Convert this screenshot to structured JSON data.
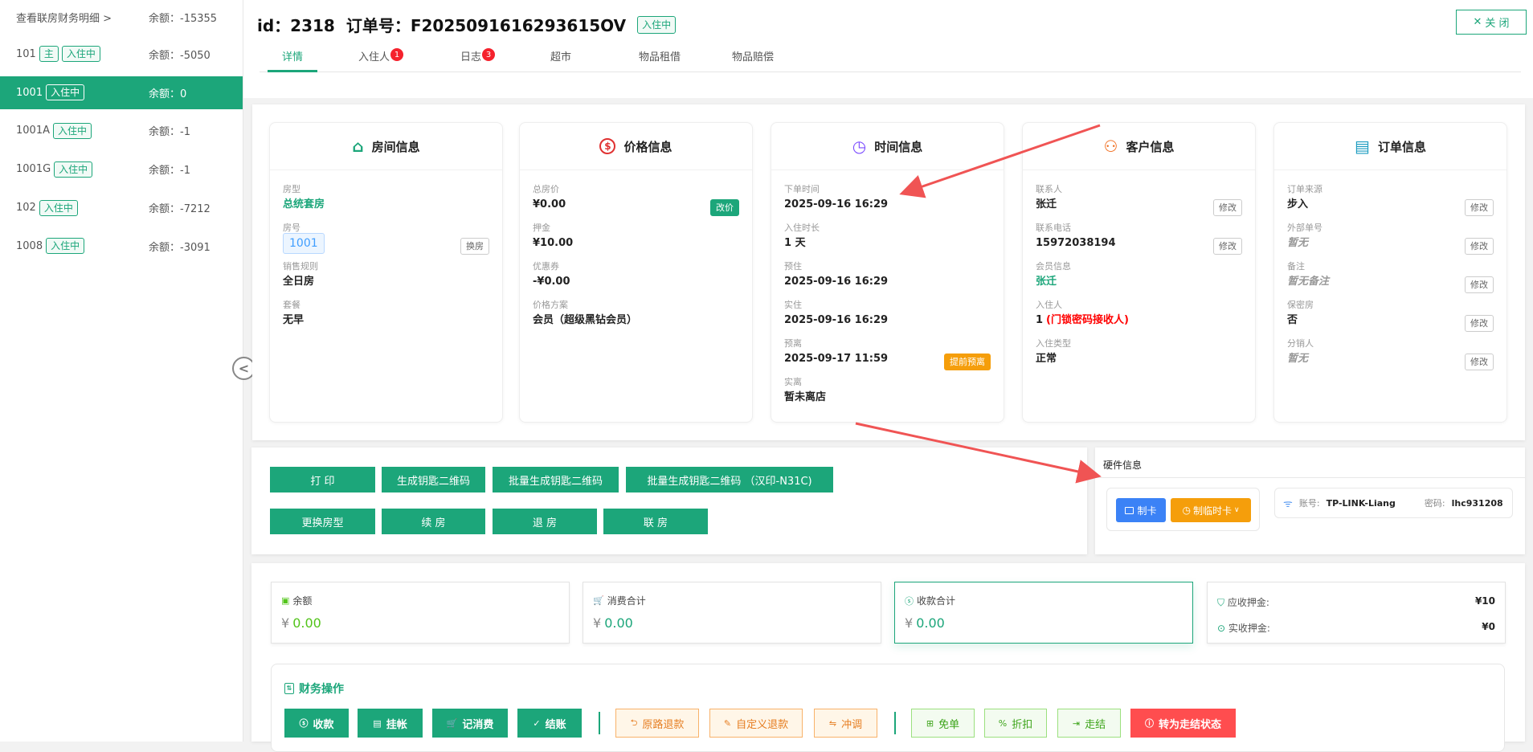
{
  "sidebar": {
    "rows": [
      {
        "name": "查看联房财务明细 >",
        "tags": [],
        "balance": "余额：-15355",
        "selected": false
      },
      {
        "name": "101",
        "tags": [
          "主",
          "入住中"
        ],
        "balance": "余额：-5050",
        "selected": false
      },
      {
        "name": "1001",
        "tags": [
          "入住中"
        ],
        "balance": "余额：0",
        "selected": true
      },
      {
        "name": "1001A",
        "tags": [
          "入住中"
        ],
        "balance": "余额：-1",
        "selected": false
      },
      {
        "name": "1001G",
        "tags": [
          "入住中"
        ],
        "balance": "余额：-1",
        "selected": false
      },
      {
        "name": "102",
        "tags": [
          "入住中"
        ],
        "balance": "余额：-7212",
        "selected": false
      },
      {
        "name": "1008",
        "tags": [
          "入住中"
        ],
        "balance": "余额：-3091",
        "selected": false
      }
    ],
    "collapse_icon": "chevron-left-circle"
  },
  "header": {
    "id_text": "id：2318",
    "order_text": "订单号：F2025091616293615OV",
    "status": "入住中",
    "close_label": "关 闭",
    "tabs": [
      {
        "label": "详情",
        "active": true
      },
      {
        "label": "入住人",
        "badge": "1"
      },
      {
        "label": "日志",
        "badge": "3"
      },
      {
        "label": "超市"
      },
      {
        "label": "物品租借"
      },
      {
        "label": "物品赔偿"
      }
    ]
  },
  "cards": [
    {
      "title": "房间信息",
      "icon": "house",
      "color": "#1ca67a",
      "fields": [
        {
          "label": "房型",
          "value": "总统套房",
          "style": "green"
        },
        {
          "label": "房号",
          "value": "1001",
          "style": "room",
          "button": "换房"
        },
        {
          "label": "销售规则",
          "value": "全日房"
        },
        {
          "label": "套餐",
          "value": "无早"
        }
      ]
    },
    {
      "title": "价格信息",
      "icon": "dollar-circle",
      "color": "#e03131",
      "fields": [
        {
          "label": "总房价",
          "value": "¥0.00",
          "button": "改价",
          "button_style": "fill"
        },
        {
          "label": "押金",
          "value": "¥10.00"
        },
        {
          "label": "优惠券",
          "value": "-¥0.00"
        },
        {
          "label": "价格方案",
          "value": "会员（超级黑钻会员）"
        }
      ]
    },
    {
      "title": "时间信息",
      "icon": "clock",
      "color": "#7c4dff",
      "fields": [
        {
          "label": "下单时间",
          "value": "2025-09-16 16:29"
        },
        {
          "label": "入住时长",
          "value": "1 天"
        },
        {
          "label": "预住",
          "value": "2025-09-16 16:29"
        },
        {
          "label": "实住",
          "value": "2025-09-16 16:29"
        },
        {
          "label": "预离",
          "value": "2025-09-17 11:59",
          "button": "提前预离",
          "button_style": "orange"
        },
        {
          "label": "实离",
          "value": "暂未离店"
        }
      ]
    },
    {
      "title": "客户信息",
      "icon": "user",
      "color": "#f06a1a",
      "fields": [
        {
          "label": "联系人",
          "value": "张迁",
          "button": "修改"
        },
        {
          "label": "联系电话",
          "value": "15972038194",
          "button": "修改"
        },
        {
          "label": "会员信息",
          "value": "张迁",
          "style": "green"
        },
        {
          "label": "入住人",
          "value": "1",
          "suffix": "(门锁密码接收人)"
        },
        {
          "label": "入住类型",
          "value": "正常"
        }
      ]
    },
    {
      "title": "订单信息",
      "icon": "document",
      "color": "#1a9bc0",
      "fields": [
        {
          "label": "订单来源",
          "value": "步入",
          "button": "修改"
        },
        {
          "label": "外部单号",
          "value": "暂无",
          "style": "muted",
          "button": "修改"
        },
        {
          "label": "备注",
          "value": "暂无备注",
          "style": "muted",
          "button": "修改"
        },
        {
          "label": "保密房",
          "value": "否",
          "button": "修改"
        },
        {
          "label": "分销人",
          "value": "暂无",
          "style": "muted",
          "button": "修改"
        }
      ]
    }
  ],
  "actions": {
    "row1": [
      "打 印",
      "生成钥匙二维码",
      "批量生成钥匙二维码",
      "批量生成钥匙二维码 （汉印-N31C)"
    ],
    "row2": [
      "更换房型",
      "续 房",
      "退 房",
      "联 房"
    ]
  },
  "hardware": {
    "title": "硬件信息",
    "make_card": "制卡",
    "make_temp_card": "制临时卡",
    "account_label": "账号:",
    "account": "TP-LINK-Liang",
    "password_label": "密码:",
    "password": "lhc931208"
  },
  "stats": [
    {
      "label": "余额",
      "currency": "¥",
      "value": "0.00",
      "icon": "wallet"
    },
    {
      "label": "消费合计",
      "currency": "¥",
      "value": "0.00",
      "icon": "cart"
    },
    {
      "label": "收款合计",
      "currency": "¥",
      "value": "0.00",
      "icon": "dollar-circle"
    }
  ],
  "deposit": {
    "due_label": "应收押金:",
    "due": "¥10",
    "received_label": "实收押金:",
    "received": "¥0"
  },
  "finance": {
    "title": "财务操作",
    "buttons": [
      {
        "label": "收款",
        "style": "g",
        "icon": "dollar-circle"
      },
      {
        "label": "挂帐",
        "style": "g",
        "icon": "document"
      },
      {
        "label": "记消费",
        "style": "g",
        "icon": "cart"
      },
      {
        "label": "结账",
        "style": "g",
        "icon": "check-circle"
      },
      {
        "label": "原路退款",
        "style": "o",
        "icon": "return"
      },
      {
        "label": "自定义退款",
        "style": "o",
        "icon": "pen"
      },
      {
        "label": "冲调",
        "style": "o",
        "icon": "swap"
      },
      {
        "label": "免单",
        "style": "l",
        "icon": "gift"
      },
      {
        "label": "折扣",
        "style": "l",
        "icon": "percent"
      },
      {
        "label": "走结",
        "style": "l",
        "icon": "exit"
      },
      {
        "label": "转为走结状态",
        "style": "r",
        "icon": "info-circle"
      }
    ]
  },
  "colors": {
    "accent": "#1ca67a",
    "annotation_arrow": "#f05454"
  }
}
